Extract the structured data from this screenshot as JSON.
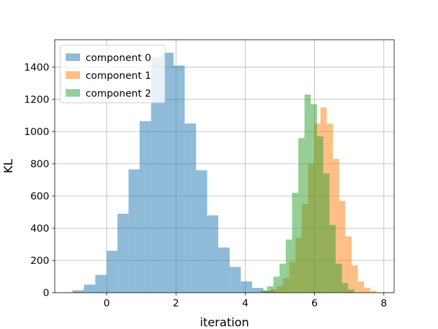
{
  "chart_data": {
    "type": "bar",
    "subtype": "histogram-overlay",
    "xlabel": "iteration",
    "ylabel": "KL",
    "xlim": [
      -1.5,
      8.3
    ],
    "ylim": [
      0,
      1570
    ],
    "xticks": [
      0,
      2,
      4,
      6,
      8
    ],
    "yticks": [
      0,
      200,
      400,
      600,
      800,
      1000,
      1200,
      1400
    ],
    "grid": true,
    "legend_position": "top-left",
    "opacity": 0.5,
    "series": [
      {
        "name": "component 0",
        "color": "#1f77b4",
        "bins": [
          {
            "x0": -0.99,
            "x1": -0.66,
            "value": 15
          },
          {
            "x0": -0.66,
            "x1": -0.33,
            "value": 50
          },
          {
            "x0": -0.33,
            "x1": 0.0,
            "value": 110
          },
          {
            "x0": 0.0,
            "x1": 0.31,
            "value": 260
          },
          {
            "x0": 0.31,
            "x1": 0.63,
            "value": 490
          },
          {
            "x0": 0.63,
            "x1": 0.95,
            "value": 765
          },
          {
            "x0": 0.95,
            "x1": 1.28,
            "value": 1065
          },
          {
            "x0": 1.28,
            "x1": 1.6,
            "value": 1460
          },
          {
            "x0": 1.6,
            "x1": 1.93,
            "value": 1490
          },
          {
            "x0": 1.93,
            "x1": 2.25,
            "value": 1410
          },
          {
            "x0": 2.25,
            "x1": 2.58,
            "value": 1050
          },
          {
            "x0": 2.58,
            "x1": 2.9,
            "value": 760
          },
          {
            "x0": 2.9,
            "x1": 3.22,
            "value": 480
          },
          {
            "x0": 3.22,
            "x1": 3.55,
            "value": 280
          },
          {
            "x0": 3.55,
            "x1": 3.87,
            "value": 160
          },
          {
            "x0": 3.87,
            "x1": 4.2,
            "value": 70
          },
          {
            "x0": 4.2,
            "x1": 4.52,
            "value": 30
          },
          {
            "x0": 4.52,
            "x1": 4.85,
            "value": 10
          }
        ]
      },
      {
        "name": "component 1",
        "color": "#ff7f0e",
        "bins": [
          {
            "x0": 4.55,
            "x1": 4.73,
            "value": 10
          },
          {
            "x0": 4.73,
            "x1": 4.91,
            "value": 20
          },
          {
            "x0": 4.91,
            "x1": 5.09,
            "value": 40
          },
          {
            "x0": 5.09,
            "x1": 5.27,
            "value": 90
          },
          {
            "x0": 5.27,
            "x1": 5.45,
            "value": 190
          },
          {
            "x0": 5.45,
            "x1": 5.63,
            "value": 340
          },
          {
            "x0": 5.63,
            "x1": 5.81,
            "value": 550
          },
          {
            "x0": 5.81,
            "x1": 5.99,
            "value": 800
          },
          {
            "x0": 5.99,
            "x1": 6.17,
            "value": 1050
          },
          {
            "x0": 6.17,
            "x1": 6.35,
            "value": 1150
          },
          {
            "x0": 6.35,
            "x1": 6.53,
            "value": 1050
          },
          {
            "x0": 6.53,
            "x1": 6.71,
            "value": 830
          },
          {
            "x0": 6.71,
            "x1": 6.89,
            "value": 570
          },
          {
            "x0": 6.89,
            "x1": 7.07,
            "value": 350
          },
          {
            "x0": 7.07,
            "x1": 7.25,
            "value": 170
          },
          {
            "x0": 7.25,
            "x1": 7.43,
            "value": 70
          },
          {
            "x0": 7.43,
            "x1": 7.61,
            "value": 30
          },
          {
            "x0": 7.61,
            "x1": 7.79,
            "value": 10
          }
        ]
      },
      {
        "name": "component 2",
        "color": "#2ca02c",
        "bins": [
          {
            "x0": 4.45,
            "x1": 4.63,
            "value": 15
          },
          {
            "x0": 4.63,
            "x1": 4.81,
            "value": 40
          },
          {
            "x0": 4.81,
            "x1": 4.99,
            "value": 100
          },
          {
            "x0": 4.99,
            "x1": 5.17,
            "value": 180
          },
          {
            "x0": 5.17,
            "x1": 5.35,
            "value": 330
          },
          {
            "x0": 5.35,
            "x1": 5.53,
            "value": 620
          },
          {
            "x0": 5.53,
            "x1": 5.71,
            "value": 960
          },
          {
            "x0": 5.71,
            "x1": 5.89,
            "value": 1230
          },
          {
            "x0": 5.89,
            "x1": 6.07,
            "value": 1170
          },
          {
            "x0": 6.07,
            "x1": 6.25,
            "value": 970
          },
          {
            "x0": 6.25,
            "x1": 6.43,
            "value": 740
          },
          {
            "x0": 6.43,
            "x1": 6.61,
            "value": 420
          },
          {
            "x0": 6.61,
            "x1": 6.79,
            "value": 180
          },
          {
            "x0": 6.79,
            "x1": 6.97,
            "value": 60
          },
          {
            "x0": 6.97,
            "x1": 7.15,
            "value": 20
          }
        ]
      }
    ]
  }
}
